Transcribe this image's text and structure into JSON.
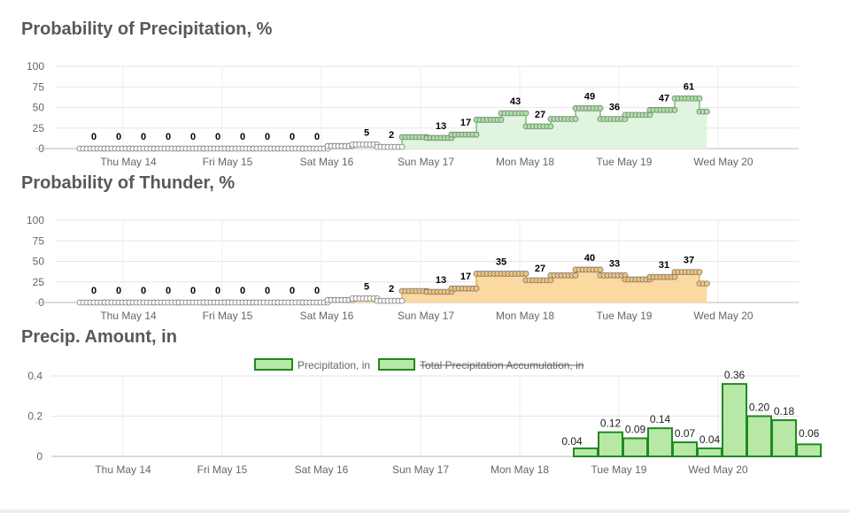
{
  "chart_data": [
    {
      "type": "line",
      "title": "Probability of Precipitation, %",
      "ylim": [
        0,
        100
      ],
      "yticks": [
        0,
        25,
        50,
        75,
        100
      ],
      "x_categories": [
        "Thu May 14",
        "Fri May 15",
        "Sat May 16",
        "Sun May 17",
        "Mon May 18",
        "Tue May 19",
        "Wed May 20"
      ],
      "series": [
        {
          "segments": [
            {
              "start": 0,
              "end": 1,
              "value": 0,
              "label": "0"
            },
            {
              "start": 1,
              "end": 2,
              "value": 0,
              "label": "0"
            },
            {
              "start": 2,
              "end": 3,
              "value": 0,
              "label": "0"
            },
            {
              "start": 3,
              "end": 4,
              "value": 0,
              "label": "0"
            },
            {
              "start": 4,
              "end": 5,
              "value": 0,
              "label": "0"
            },
            {
              "start": 5,
              "end": 6,
              "value": 0,
              "label": "0"
            },
            {
              "start": 6,
              "end": 7,
              "value": 0,
              "label": "0"
            },
            {
              "start": 7,
              "end": 8,
              "value": 0,
              "label": "0"
            },
            {
              "start": 8,
              "end": 9,
              "value": 0,
              "label": "0"
            },
            {
              "start": 9,
              "end": 10,
              "value": 0,
              "label": "0"
            },
            {
              "start": 10,
              "end": 11,
              "value": 3,
              "label": ""
            },
            {
              "start": 11,
              "end": 12,
              "value": 5,
              "label": "5"
            },
            {
              "start": 12,
              "end": 13,
              "value": 2,
              "label": "2"
            },
            {
              "start": 13,
              "end": 14,
              "value": 14,
              "label": ""
            },
            {
              "start": 14,
              "end": 15,
              "value": 13,
              "label": "13"
            },
            {
              "start": 15,
              "end": 16,
              "value": 17,
              "label": "17"
            },
            {
              "start": 16,
              "end": 17,
              "value": 35,
              "label": ""
            },
            {
              "start": 17,
              "end": 18,
              "value": 43,
              "label": "43"
            },
            {
              "start": 18,
              "end": 19,
              "value": 27,
              "label": "27"
            },
            {
              "start": 19,
              "end": 20,
              "value": 36,
              "label": ""
            },
            {
              "start": 20,
              "end": 21,
              "value": 49,
              "label": "49"
            },
            {
              "start": 21,
              "end": 22,
              "value": 36,
              "label": "36"
            },
            {
              "start": 22,
              "end": 23,
              "value": 41,
              "label": ""
            },
            {
              "start": 23,
              "end": 24,
              "value": 47,
              "label": "47"
            },
            {
              "start": 24,
              "end": 25,
              "value": 61,
              "label": "61"
            },
            {
              "start": 25,
              "end": 25.3,
              "value": 45,
              "label": ""
            }
          ]
        }
      ],
      "colors": {
        "line": "#5cb85c",
        "fill": "#dff5df",
        "marker_active": "#a8e6a0"
      }
    },
    {
      "type": "line",
      "title": "Probability of Thunder, %",
      "ylim": [
        0,
        100
      ],
      "yticks": [
        0,
        25,
        50,
        75,
        100
      ],
      "x_categories": [
        "Thu May 14",
        "Fri May 15",
        "Sat May 16",
        "Sun May 17",
        "Mon May 18",
        "Tue May 19",
        "Wed May 20"
      ],
      "series": [
        {
          "segments": [
            {
              "start": 0,
              "end": 1,
              "value": 0,
              "label": "0"
            },
            {
              "start": 1,
              "end": 2,
              "value": 0,
              "label": "0"
            },
            {
              "start": 2,
              "end": 3,
              "value": 0,
              "label": "0"
            },
            {
              "start": 3,
              "end": 4,
              "value": 0,
              "label": "0"
            },
            {
              "start": 4,
              "end": 5,
              "value": 0,
              "label": "0"
            },
            {
              "start": 5,
              "end": 6,
              "value": 0,
              "label": "0"
            },
            {
              "start": 6,
              "end": 7,
              "value": 0,
              "label": "0"
            },
            {
              "start": 7,
              "end": 8,
              "value": 0,
              "label": "0"
            },
            {
              "start": 8,
              "end": 9,
              "value": 0,
              "label": "0"
            },
            {
              "start": 9,
              "end": 10,
              "value": 0,
              "label": "0"
            },
            {
              "start": 10,
              "end": 11,
              "value": 3,
              "label": ""
            },
            {
              "start": 11,
              "end": 12,
              "value": 5,
              "label": "5"
            },
            {
              "start": 12,
              "end": 13,
              "value": 2,
              "label": "2"
            },
            {
              "start": 13,
              "end": 14,
              "value": 14,
              "label": ""
            },
            {
              "start": 14,
              "end": 15,
              "value": 13,
              "label": "13"
            },
            {
              "start": 15,
              "end": 16,
              "value": 17,
              "label": "17"
            },
            {
              "start": 16,
              "end": 18,
              "value": 35,
              "label": "35"
            },
            {
              "start": 18,
              "end": 19,
              "value": 27,
              "label": "27"
            },
            {
              "start": 19,
              "end": 20,
              "value": 33,
              "label": ""
            },
            {
              "start": 20,
              "end": 21,
              "value": 40,
              "label": "40"
            },
            {
              "start": 21,
              "end": 22,
              "value": 33,
              "label": "33"
            },
            {
              "start": 22,
              "end": 23,
              "value": 28,
              "label": ""
            },
            {
              "start": 23,
              "end": 24,
              "value": 31,
              "label": "31"
            },
            {
              "start": 24,
              "end": 25,
              "value": 37,
              "label": "37"
            },
            {
              "start": 25,
              "end": 25.3,
              "value": 23,
              "label": ""
            }
          ]
        }
      ],
      "colors": {
        "line": "#f0a030",
        "fill": "#fbd9a0",
        "marker_active": "#f5c478"
      }
    },
    {
      "type": "bar",
      "title": "Precip. Amount, in",
      "ylim": [
        0,
        0.4
      ],
      "yticks": [
        "0",
        "0.2",
        "0.4"
      ],
      "x_categories": [
        "Thu May 14",
        "Fri May 15",
        "Sat May 16",
        "Sun May 17",
        "Mon May 18",
        "Tue May 19",
        "Wed May 20"
      ],
      "legend": [
        {
          "name": "Precipitation, in",
          "hidden": false
        },
        {
          "name": "Total Precipitation Accumulation, in",
          "hidden": true
        }
      ],
      "bars": [
        {
          "pos": 17,
          "value": 0.04,
          "label": "0.04"
        },
        {
          "pos": 18,
          "value": 0.12,
          "label": "0.12"
        },
        {
          "pos": 19,
          "value": 0.09,
          "label": "0.09"
        },
        {
          "pos": 20,
          "value": 0.14,
          "label": "0.14"
        },
        {
          "pos": 21,
          "value": 0.07,
          "label": "0.07"
        },
        {
          "pos": 22,
          "value": 0.04,
          "label": "0.04"
        },
        {
          "pos": 23,
          "value": 0.36,
          "label": "0.36"
        },
        {
          "pos": 24,
          "value": 0.2,
          "label": "0.20"
        },
        {
          "pos": 25,
          "value": 0.18,
          "label": "0.18"
        },
        {
          "pos": 26,
          "value": 0.06,
          "label": "0.06"
        }
      ],
      "colors": {
        "bar_fill": "#b8e8a8",
        "bar_border": "#1e8a1e"
      }
    }
  ]
}
